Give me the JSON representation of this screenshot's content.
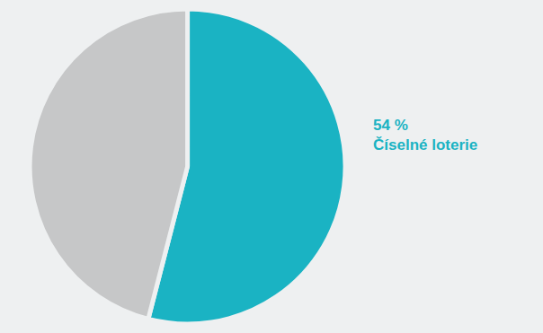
{
  "chart_data": {
    "type": "pie",
    "categories": [
      "Číselné loterie",
      null
    ],
    "values": [
      54,
      46
    ],
    "value_labels": [
      "54 %",
      null
    ],
    "colors": [
      "#1ab3c3",
      "#c6c7c8"
    ],
    "data_labels": true
  }
}
